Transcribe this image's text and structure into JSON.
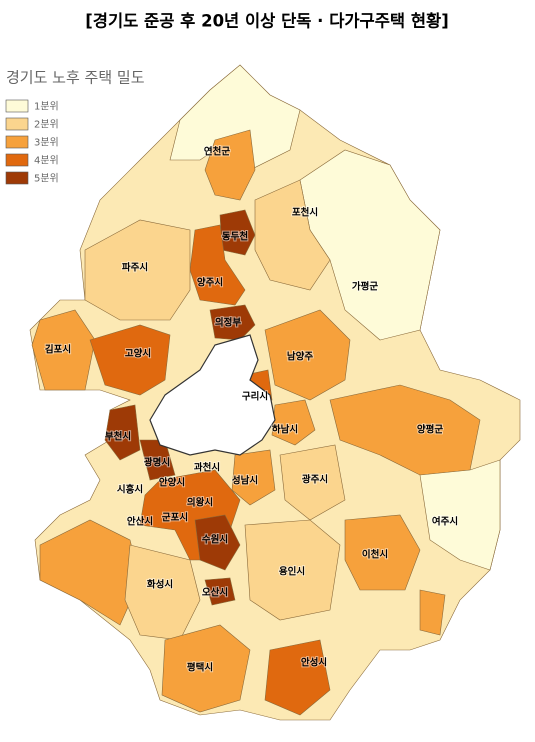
{
  "title": "[경기도 준공 후 20년 이상 단독 · 다가구주택 현황]",
  "map_title": "경기도 노후 주택 밀도",
  "legend": [
    {
      "label": "1분위",
      "color": "#fefbd8"
    },
    {
      "label": "2분위",
      "color": "#fbd58e"
    },
    {
      "label": "3분위",
      "color": "#f6a13c"
    },
    {
      "label": "4분위",
      "color": "#e0690f"
    },
    {
      "label": "5분위",
      "color": "#9e3a06"
    }
  ],
  "regions": [
    "연천군",
    "포천시",
    "동두천",
    "파주시",
    "양주시",
    "가평군",
    "의정부",
    "김포시",
    "고양시",
    "남양주",
    "구리시",
    "하남시",
    "양평군",
    "부천시",
    "광명시",
    "과천시",
    "안양시",
    "성남시",
    "광주시",
    "시흥시",
    "의왕시",
    "안산시",
    "군포시",
    "여주시",
    "수원시",
    "이천시",
    "화성시",
    "용인시",
    "오산시",
    "평택시",
    "안성시"
  ]
}
